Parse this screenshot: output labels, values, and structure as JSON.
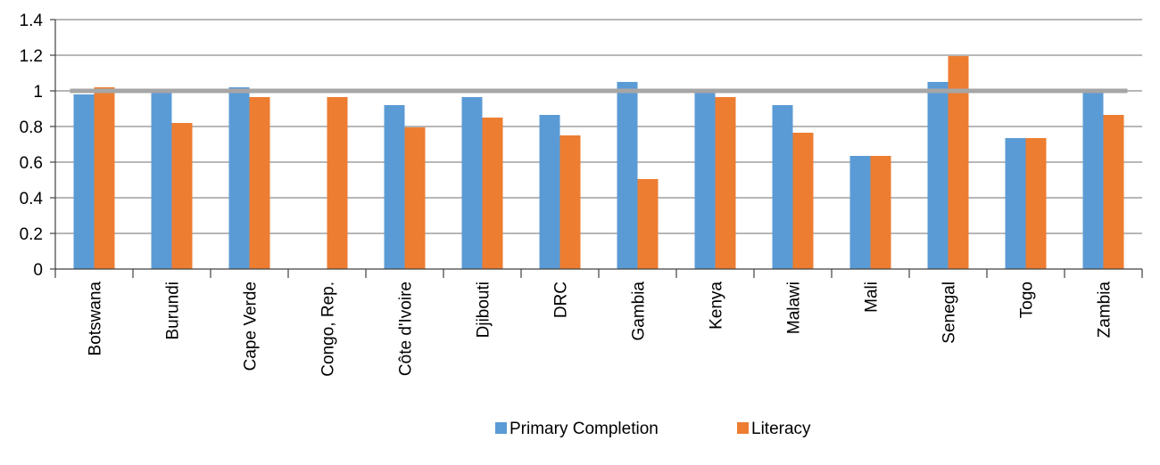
{
  "chart_data": {
    "type": "bar",
    "title": "",
    "xlabel": "",
    "ylabel": "",
    "ylim": [
      0,
      1.4
    ],
    "yticks": [
      "0",
      "0.2",
      "0.4",
      "0.6",
      "0.8",
      "1",
      "1.2",
      "1.4"
    ],
    "categories": [
      "Botswana",
      "Burundi",
      "Cape Verde",
      "Congo, Rep.",
      "Côte d'Ivoire",
      "Djibouti",
      "DRC",
      "Gambia",
      "Kenya",
      "Malawi",
      "Mali",
      "Senegal",
      "Togo",
      "Zambia"
    ],
    "series": [
      {
        "name": "Primary Completion",
        "color": "#5B9BD5",
        "values": [
          0.98,
          0.99,
          1.02,
          null,
          0.92,
          0.965,
          0.865,
          1.05,
          0.99,
          0.92,
          0.635,
          1.05,
          0.735,
          0.99
        ]
      },
      {
        "name": "Literacy",
        "color": "#ED7D31",
        "values": [
          1.02,
          0.82,
          0.965,
          0.965,
          0.795,
          0.85,
          0.75,
          0.505,
          0.965,
          0.765,
          0.635,
          1.195,
          0.735,
          0.865
        ]
      }
    ],
    "reference_line": {
      "value": 1,
      "color": "#A6A6A6"
    },
    "grid": true,
    "legend": "bottom"
  }
}
